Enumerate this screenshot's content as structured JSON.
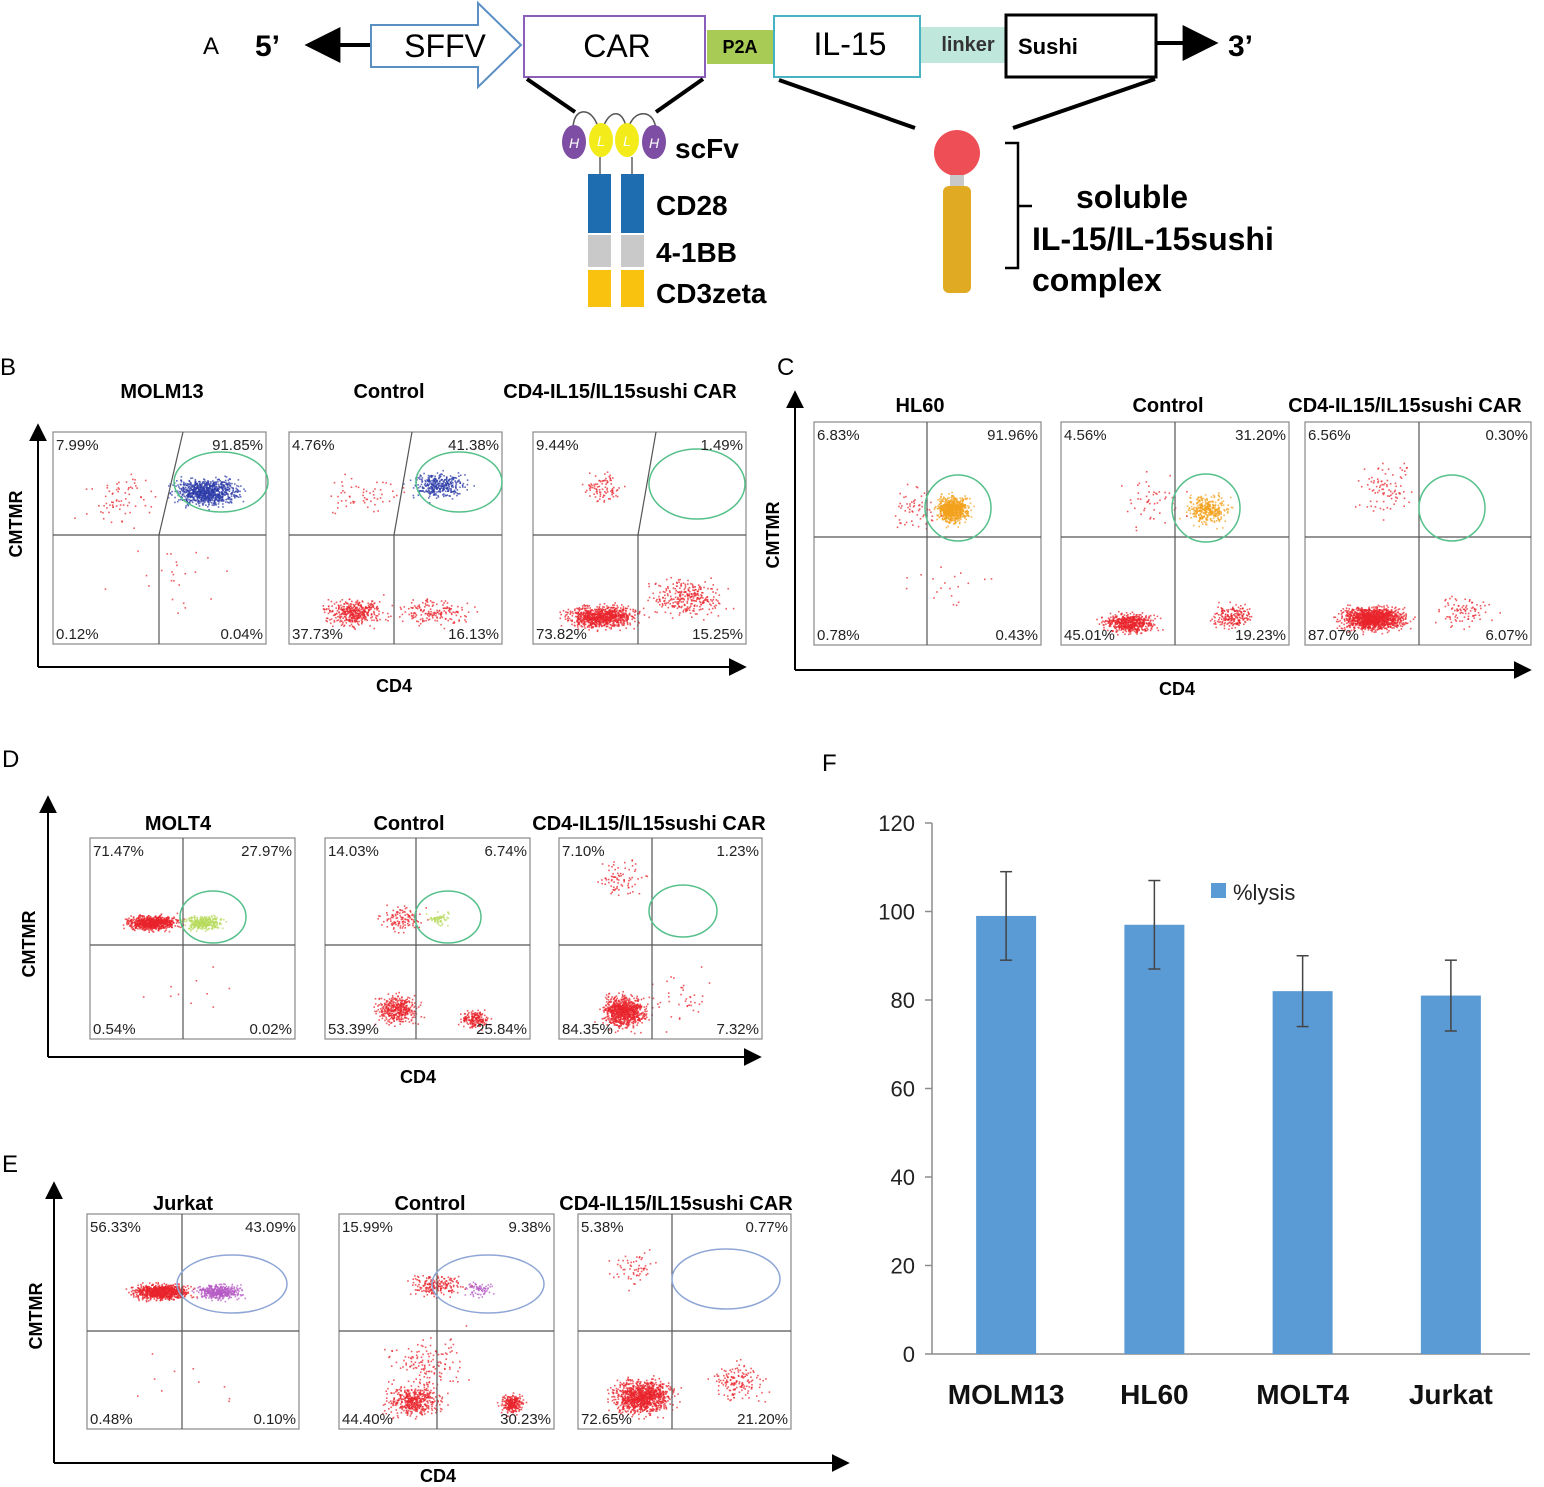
{
  "panel_a": {
    "label": "A",
    "five_prime": "5’",
    "three_prime": "3’",
    "segments": [
      "SFFV",
      "CAR",
      "P2A",
      "IL-15",
      "linker",
      "Sushi"
    ],
    "scfv_domains": [
      "H",
      "L",
      "L",
      "H"
    ],
    "car_domains": [
      "scFv",
      "CD28",
      "4-1BB",
      "CD3zeta"
    ],
    "complex_label": [
      "soluble",
      "IL-15/IL-15sushi",
      "complex"
    ],
    "colors": {
      "cd28": "#1f6db1",
      "bb41": "#c9c9c9",
      "cd3zeta": "#f9c20f",
      "heavy": "#7d4ea3",
      "light": "#f3ec1a",
      "il15": "#ee4e55",
      "sushi": "#e0aa22",
      "p2a": "#a7cb54",
      "linker": "#bfe7dc"
    }
  },
  "flow_panels": [
    {
      "label": "B",
      "xlabel": "CD4",
      "ylabel": "CMTMR",
      "dot_color": "#2e3ca8",
      "plots": [
        {
          "title": "MOLM13",
          "q": [
            "7.99%",
            "91.85%",
            "0.12%",
            "0.04%"
          ]
        },
        {
          "title": "Control",
          "q": [
            "4.76%",
            "41.38%",
            "37.73%",
            "16.13%"
          ]
        },
        {
          "title": "CD4-IL15/IL15sushi CAR",
          "q": [
            "9.44%",
            "1.49%",
            "73.82%",
            "15.25%"
          ]
        }
      ]
    },
    {
      "label": "C",
      "xlabel": "CD4",
      "ylabel": "CMTMR",
      "dot_color": "#f3a21d",
      "plots": [
        {
          "title": "HL60",
          "q": [
            "6.83%",
            "91.96%",
            "0.78%",
            "0.43%"
          ]
        },
        {
          "title": "Control",
          "q": [
            "4.56%",
            "31.20%",
            "45.01%",
            "19.23%"
          ]
        },
        {
          "title": "CD4-IL15/IL15sushi CAR",
          "q": [
            "6.56%",
            "0.30%",
            "87.07%",
            "6.07%"
          ]
        }
      ]
    },
    {
      "label": "D",
      "xlabel": "CD4",
      "ylabel": "CMTMR",
      "dot_color": "#b6d95a",
      "plots": [
        {
          "title": "MOLT4",
          "q": [
            "71.47%",
            "27.97%",
            "0.54%",
            "0.02%"
          ]
        },
        {
          "title": "Control",
          "q": [
            "14.03%",
            "6.74%",
            "53.39%",
            "25.84%"
          ]
        },
        {
          "title": "CD4-IL15/IL15sushi CAR",
          "q": [
            "7.10%",
            "1.23%",
            "84.35%",
            "7.32%"
          ]
        }
      ]
    },
    {
      "label": "E",
      "xlabel": "CD4",
      "ylabel": "CMTMR",
      "dot_color": "#b65bc4",
      "plots": [
        {
          "title": "Jurkat",
          "q": [
            "56.33%",
            "43.09%",
            "0.48%",
            "0.10%"
          ]
        },
        {
          "title": "Control",
          "q": [
            "15.99%",
            "9.38%",
            "44.40%",
            "30.23%"
          ]
        },
        {
          "title": "CD4-IL15/IL15sushi CAR",
          "q": [
            "5.38%",
            "0.77%",
            "72.65%",
            "21.20%"
          ]
        }
      ]
    }
  ],
  "chart_data": {
    "type": "bar",
    "panel_label": "F",
    "categories": [
      "MOLM13",
      "HL60",
      "MOLT4",
      "Jurkat"
    ],
    "series": [
      {
        "name": "%lysis",
        "values": [
          99,
          97,
          82,
          81
        ],
        "errors": [
          10,
          10,
          8,
          8
        ],
        "color": "#5b9bd5"
      }
    ],
    "ylim": [
      0,
      120
    ],
    "yticks": [
      0,
      20,
      40,
      60,
      80,
      100,
      120
    ],
    "xlabel": "",
    "ylabel": "",
    "title": "",
    "legend": "top-center"
  }
}
